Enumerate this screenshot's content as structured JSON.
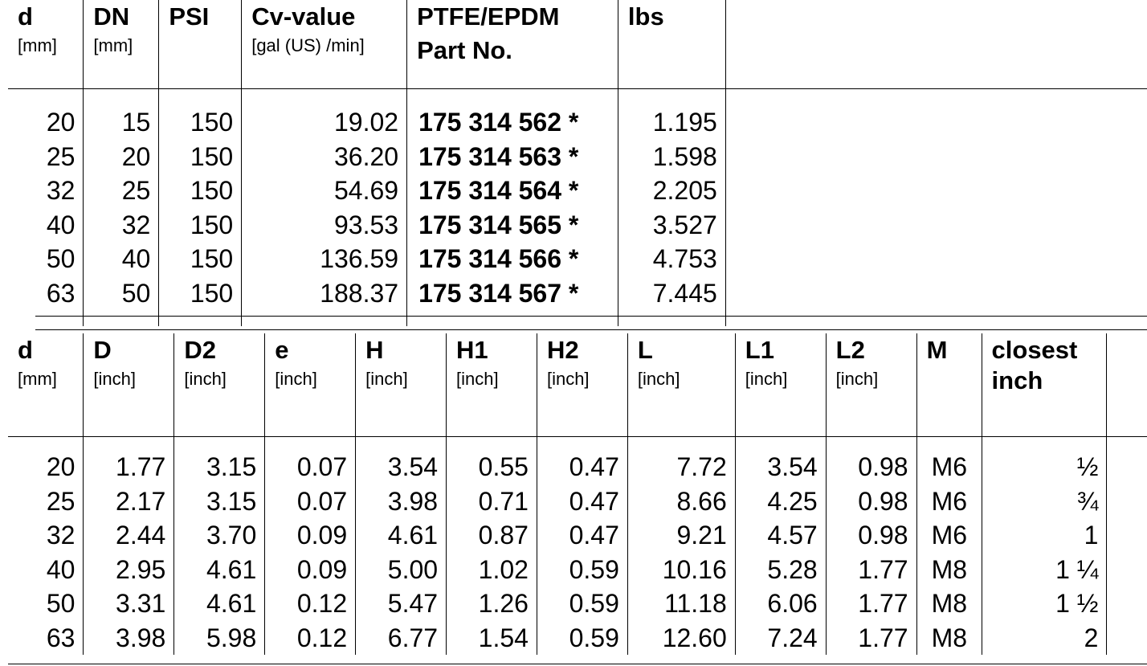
{
  "table1": {
    "headers": [
      {
        "title": "d",
        "unit": "[mm]"
      },
      {
        "title": "DN",
        "unit": "[mm]"
      },
      {
        "title": "PSI",
        "unit": ""
      },
      {
        "title": "Cv-value",
        "unit": "[gal (US) /min]"
      },
      {
        "title": "PTFE/EPDM",
        "title2": "Part No.",
        "unit": ""
      },
      {
        "title": "lbs",
        "unit": ""
      }
    ],
    "rows": [
      {
        "d": "20",
        "dn": "15",
        "psi": "150",
        "cv": "19.02",
        "part": "175 314 562 *",
        "lbs": "1.195"
      },
      {
        "d": "25",
        "dn": "20",
        "psi": "150",
        "cv": "36.20",
        "part": "175 314 563 *",
        "lbs": "1.598"
      },
      {
        "d": "32",
        "dn": "25",
        "psi": "150",
        "cv": "54.69",
        "part": "175 314 564 *",
        "lbs": "2.205"
      },
      {
        "d": "40",
        "dn": "32",
        "psi": "150",
        "cv": "93.53",
        "part": "175 314 565 *",
        "lbs": "3.527"
      },
      {
        "d": "50",
        "dn": "40",
        "psi": "150",
        "cv": "136.59",
        "part": "175 314 566 *",
        "lbs": "4.753"
      },
      {
        "d": "63",
        "dn": "50",
        "psi": "150",
        "cv": "188.37",
        "part": "175 314 567 *",
        "lbs": "7.445"
      }
    ]
  },
  "table2": {
    "headers": [
      {
        "title": "d",
        "unit": "[mm]"
      },
      {
        "title": "D",
        "unit": "[inch]"
      },
      {
        "title": "D2",
        "unit": "[inch]"
      },
      {
        "title": "e",
        "unit": "[inch]"
      },
      {
        "title": "H",
        "unit": "[inch]"
      },
      {
        "title": "H1",
        "unit": "[inch]"
      },
      {
        "title": "H2",
        "unit": "[inch]"
      },
      {
        "title": "L",
        "unit": "[inch]"
      },
      {
        "title": "L1",
        "unit": "[inch]"
      },
      {
        "title": "L2",
        "unit": "[inch]"
      },
      {
        "title": "M",
        "unit": ""
      },
      {
        "title": "closest",
        "title2": "inch",
        "unit": ""
      }
    ],
    "rows": [
      [
        "20",
        "1.77",
        "3.15",
        "0.07",
        "3.54",
        "0.55",
        "0.47",
        "7.72",
        "3.54",
        "0.98",
        "M6",
        "½"
      ],
      [
        "25",
        "2.17",
        "3.15",
        "0.07",
        "3.98",
        "0.71",
        "0.47",
        "8.66",
        "4.25",
        "0.98",
        "M6",
        "¾"
      ],
      [
        "32",
        "2.44",
        "3.70",
        "0.09",
        "4.61",
        "0.87",
        "0.47",
        "9.21",
        "4.57",
        "0.98",
        "M6",
        "1"
      ],
      [
        "40",
        "2.95",
        "4.61",
        "0.09",
        "5.00",
        "1.02",
        "0.59",
        "10.16",
        "5.28",
        "1.77",
        "M8",
        "1 ¼"
      ],
      [
        "50",
        "3.31",
        "4.61",
        "0.12",
        "5.47",
        "1.26",
        "0.59",
        "11.18",
        "6.06",
        "1.77",
        "M8",
        "1 ½"
      ],
      [
        "63",
        "3.98",
        "5.98",
        "0.12",
        "6.77",
        "1.54",
        "0.59",
        "12.60",
        "7.24",
        "1.77",
        "M8",
        "2"
      ]
    ]
  }
}
